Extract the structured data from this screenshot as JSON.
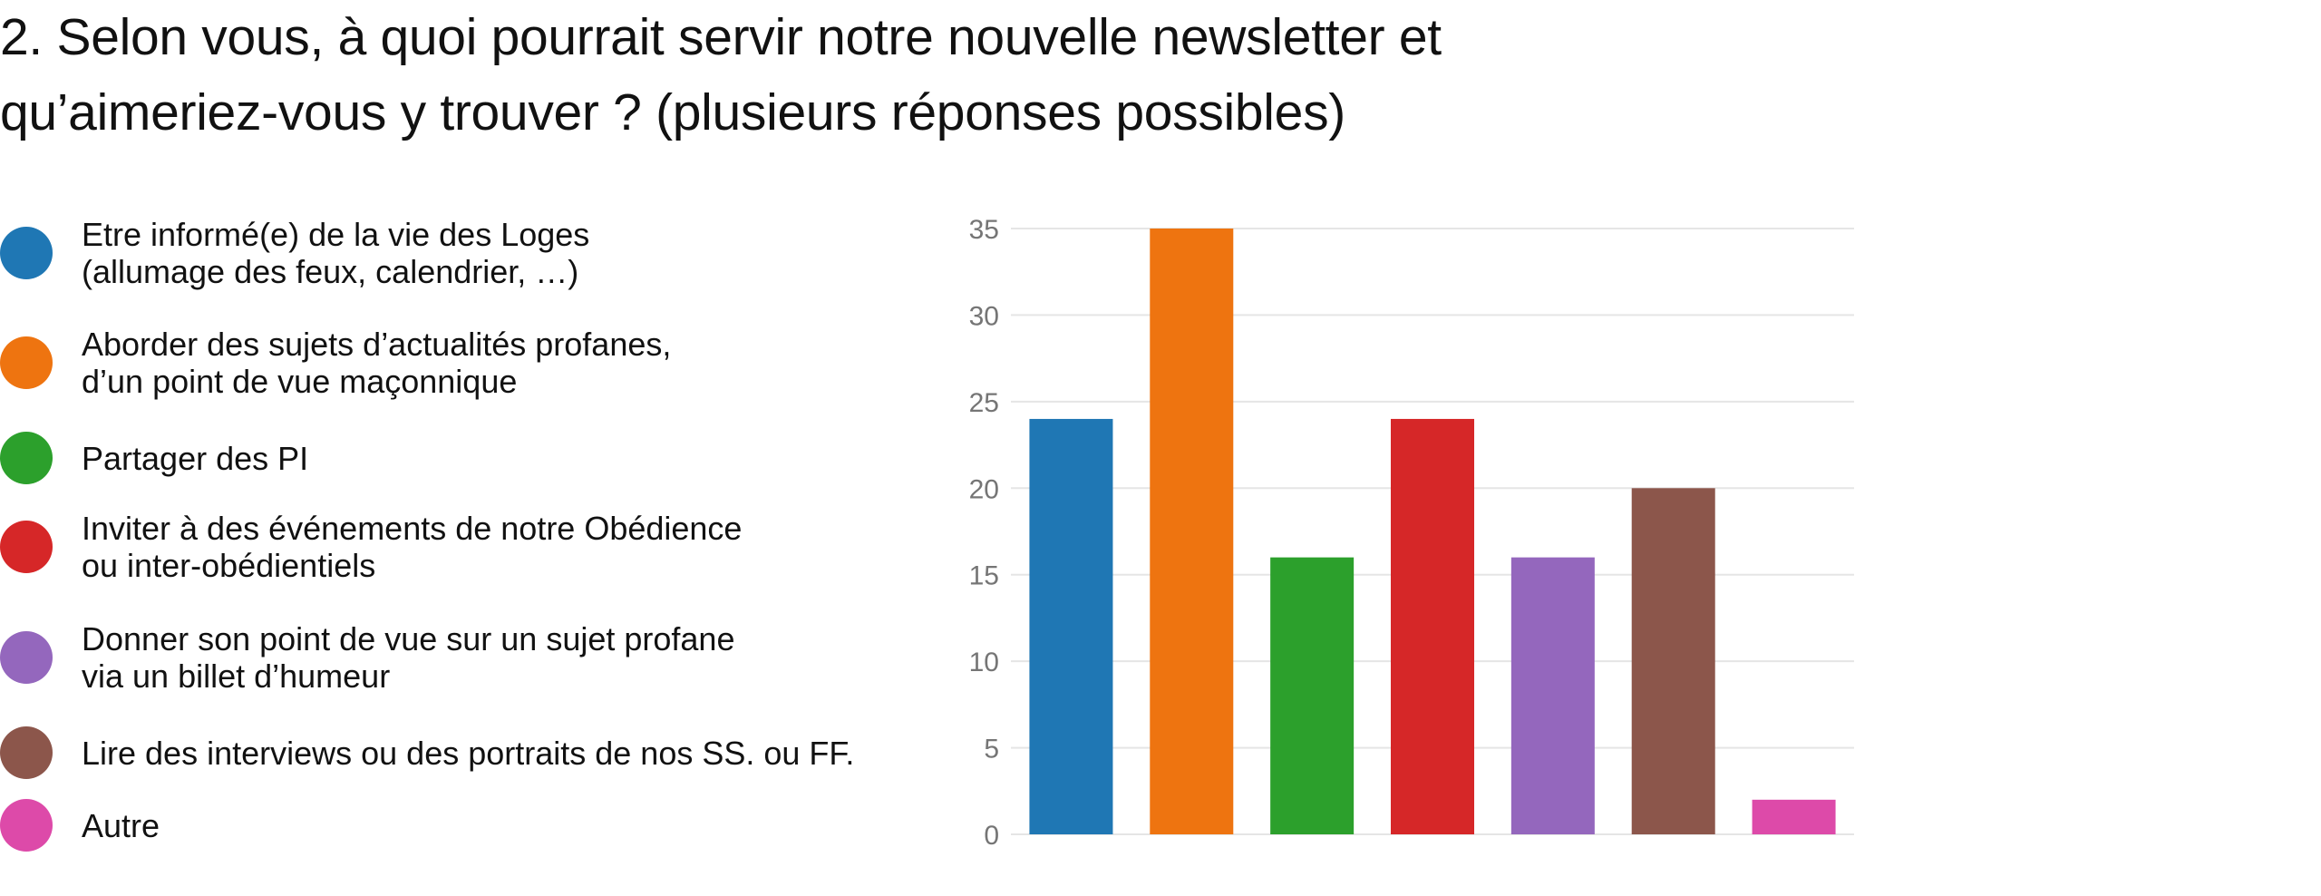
{
  "title_lines": [
    "2. Selon vous, à quoi pourrait servir notre nouvelle newsletter et",
    "qu’aimeriez-vous y trouver ? (plusieurs réponses possibles)"
  ],
  "chart_data": {
    "type": "bar",
    "title": "2. Selon vous, à quoi pourrait servir notre nouvelle newsletter et qu’aimeriez-vous y trouver ? (plusieurs réponses possibles)",
    "categories": [
      "Etre informé(e) de la vie des Loges\n(allumage des feux, calendrier, …)",
      "Aborder des sujets d’actualités profanes,\nd’un point de vue maçonnique",
      "Partager des PI",
      "Inviter à des événements de notre Obédience\nou inter-obédientiels",
      "Donner son point de vue sur un sujet profane\nvia un billet d’humeur",
      "Lire des interviews ou des portraits de nos SS. ou FF.",
      "Autre"
    ],
    "values": [
      24,
      35,
      16,
      24,
      16,
      20,
      2
    ],
    "colors": [
      "#1f77b4",
      "#ee7410",
      "#2ca02c",
      "#d62728",
      "#9467bd",
      "#8c564b",
      "#dd4aa9"
    ],
    "ylim": [
      0,
      35
    ],
    "yticks": [
      "0",
      "5",
      "10",
      "15",
      "20",
      "25",
      "30",
      "35"
    ],
    "grid": true,
    "gridColor": "#e5e5e5",
    "legend_position": "left",
    "xlabel": "",
    "ylabel": ""
  }
}
